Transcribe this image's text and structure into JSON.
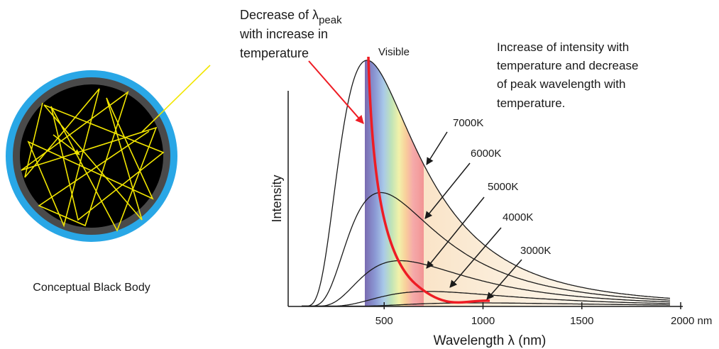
{
  "black_body": {
    "label": "Conceptual Black Body"
  },
  "plot": {
    "x_axis_label": "Wavelength λ (nm)",
    "y_axis_label": "Intensity",
    "xticks": [
      500,
      1000,
      1500,
      {
        "value": 2000,
        "label": "2000 nm"
      }
    ],
    "visible_label": "Visible",
    "curves": [
      {
        "label": "7000K"
      },
      {
        "label": "6000K"
      },
      {
        "label": "5000K"
      },
      {
        "label": "4000K"
      },
      {
        "label": "3000K"
      }
    ],
    "peak_annotation": {
      "lines": [
        "Decrease of λ",
        "with increase in",
        "temperature"
      ],
      "subscript": "peak"
    },
    "intensity_note": [
      "Increase of intensity with",
      "temperature and decrease",
      "of peak wavelength with",
      "temperature."
    ]
  }
}
